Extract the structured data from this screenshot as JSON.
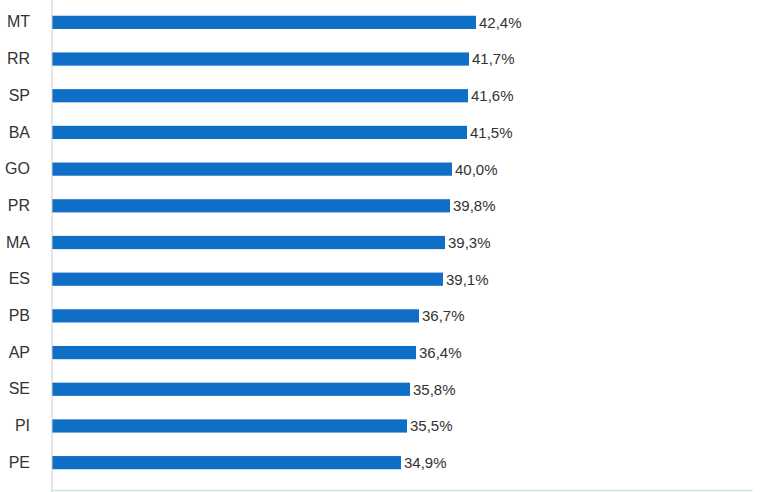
{
  "chart_data": {
    "type": "bar",
    "orientation": "horizontal",
    "categories": [
      "MT",
      "RR",
      "SP",
      "BA",
      "GO",
      "PR",
      "MA",
      "ES",
      "PB",
      "AP",
      "SE",
      "PI",
      "PE"
    ],
    "values": [
      42.4,
      41.7,
      41.6,
      41.5,
      40.0,
      39.8,
      39.3,
      39.1,
      36.7,
      36.4,
      35.8,
      35.5,
      34.9
    ],
    "value_labels": [
      "42,4%",
      "41,7%",
      "41,6%",
      "41,5%",
      "40,0%",
      "39,8%",
      "39,3%",
      "39,1%",
      "36,7%",
      "36,4%",
      "35,8%",
      "35,5%",
      "34,9%"
    ],
    "color": "#0f6fc6",
    "xlim": [
      0,
      70
    ],
    "data_labels": true,
    "tick_labels": "y",
    "grid": false
  }
}
